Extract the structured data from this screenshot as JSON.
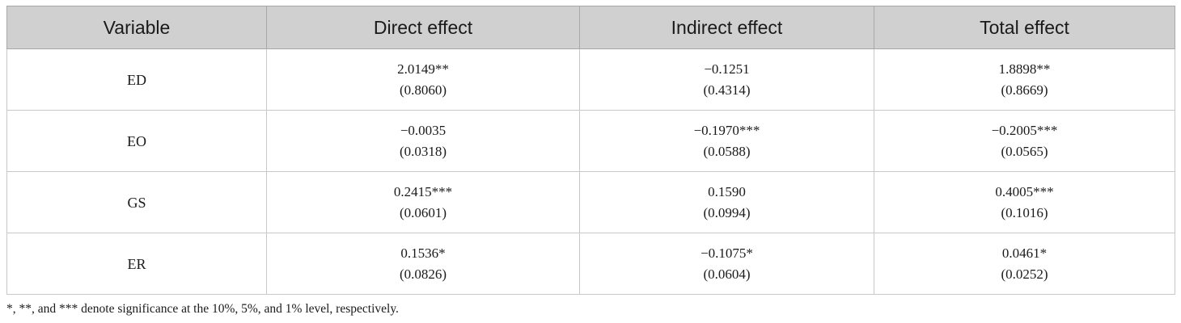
{
  "table": {
    "headers": [
      "Variable",
      "Direct effect",
      "Indirect effect",
      "Total effect"
    ],
    "rows": [
      {
        "variable": "ED",
        "cells": [
          {
            "coef": "2.0149**",
            "se": "(0.8060)"
          },
          {
            "coef": "−0.1251",
            "se": "(0.4314)"
          },
          {
            "coef": "1.8898**",
            "se": "(0.8669)"
          }
        ]
      },
      {
        "variable": "EO",
        "cells": [
          {
            "coef": "−0.0035",
            "se": "(0.0318)"
          },
          {
            "coef": "−0.1970***",
            "se": "(0.0588)"
          },
          {
            "coef": "−0.2005***",
            "se": "(0.0565)"
          }
        ]
      },
      {
        "variable": "GS",
        "cells": [
          {
            "coef": "0.2415***",
            "se": "(0.0601)"
          },
          {
            "coef": "0.1590",
            "se": "(0.0994)"
          },
          {
            "coef": "0.4005***",
            "se": "(0.1016)"
          }
        ]
      },
      {
        "variable": "ER",
        "cells": [
          {
            "coef": "0.1536*",
            "se": "(0.0826)"
          },
          {
            "coef": "−0.1075*",
            "se": "(0.0604)"
          },
          {
            "coef": "0.0461*",
            "se": "(0.0252)"
          }
        ]
      }
    ]
  },
  "footnote": "*, **, and *** denote significance at the 10%, 5%, and 1% level, respectively.",
  "colors": {
    "header_bg": "#d0d0d0",
    "border": "#c8c8c8",
    "text": "#1a1a1a"
  }
}
